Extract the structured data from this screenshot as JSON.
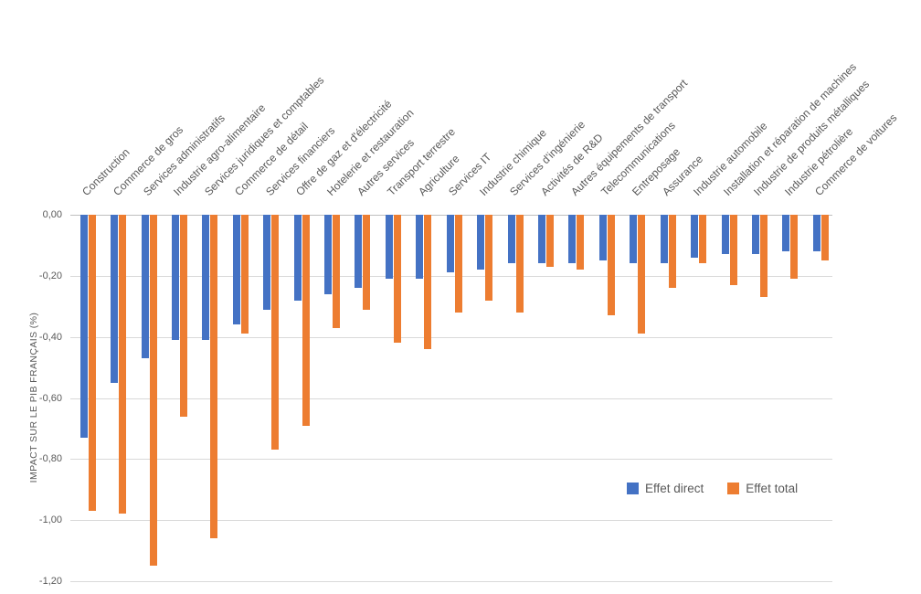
{
  "chart_data": {
    "type": "bar",
    "orientation": "vertical-negative",
    "title": "",
    "xlabel": "",
    "ylabel": "IMPACT SUR LE PIB FRANÇAIS (%)",
    "ylim": [
      -1.2,
      0
    ],
    "ytick_labels": [
      "0,00",
      "-0,20",
      "-0,40",
      "-0,60",
      "-0,80",
      "-1,00",
      "-1,20"
    ],
    "grid": true,
    "legend_position": "middle-right",
    "categories": [
      "Construction",
      "Commerce de gros",
      "Services administratifs",
      "Industrie agro-alimentaire",
      "Services juridiques et comptables",
      "Commerce de détail",
      "Services financiers",
      "Offre de gaz et d'électricité",
      "Hotelerie et restauration",
      "Autres services",
      "Transport terrestre",
      "Agriculture",
      "Services IT",
      "Industrie chimique",
      "Services d'ingénierie",
      "Activités de R&D",
      "Autres équipements de transport",
      "Telecommunications",
      "Entreposage",
      "Assurance",
      "Industrie automobile",
      "Installation et réparation de machines",
      "Industrie de produits métalliques",
      "Industrie pétrolière",
      "Commerce de voitures"
    ],
    "series": [
      {
        "name": "Effet direct",
        "color": "#4472C4",
        "values": [
          -0.73,
          -0.55,
          -0.47,
          -0.41,
          -0.41,
          -0.36,
          -0.31,
          -0.28,
          -0.26,
          -0.24,
          -0.21,
          -0.21,
          -0.19,
          -0.18,
          -0.16,
          -0.16,
          -0.16,
          -0.15,
          -0.16,
          -0.16,
          -0.14,
          -0.13,
          -0.13,
          -0.12,
          -0.12
        ]
      },
      {
        "name": "Effet total",
        "color": "#ED7D31",
        "values": [
          -0.97,
          -0.98,
          -1.15,
          -0.66,
          -1.06,
          -0.39,
          -0.77,
          -0.69,
          -0.37,
          -0.31,
          -0.42,
          -0.44,
          -0.32,
          -0.28,
          -0.32,
          -0.17,
          -0.18,
          -0.33,
          -0.39,
          -0.24,
          -0.16,
          -0.23,
          -0.27,
          -0.21,
          -0.15
        ]
      }
    ]
  },
  "colors": {
    "grid": "#D9D9D9",
    "axis": "#BFBFBF",
    "text": "#595959",
    "background": "#FFFFFF"
  }
}
